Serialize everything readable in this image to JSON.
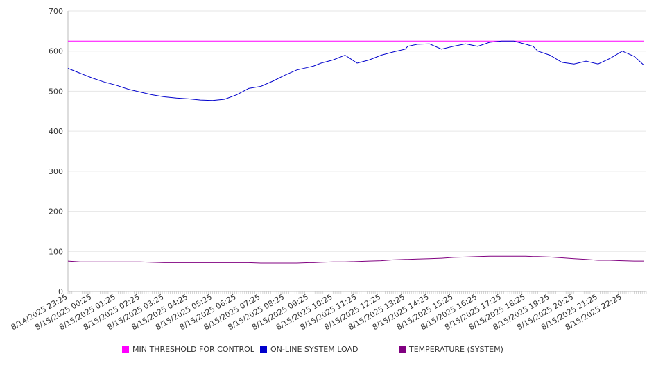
{
  "chart_data": {
    "type": "line",
    "title": "",
    "xlabel": "",
    "ylabel": "",
    "ylim": [
      0,
      700
    ],
    "y_ticks": [
      0,
      100,
      200,
      300,
      400,
      500,
      600,
      700
    ],
    "grid": true,
    "legend_position": "bottom",
    "x_tick_labels": [
      "8/14/2025 23:25",
      "8/15/2025 00:25",
      "8/15/2025 01:25",
      "8/15/2025 02:25",
      "8/15/2025 03:25",
      "8/15/2025 04:25",
      "8/15/2025 05:25",
      "8/15/2025 06:25",
      "8/15/2025 07:25",
      "8/15/2025 08:25",
      "8/15/2025 09:25",
      "8/15/2025 10:25",
      "8/15/2025 11:25",
      "8/15/2025 12:25",
      "8/15/2025 13:25",
      "8/15/2025 14:25",
      "8/15/2025 15:25",
      "8/15/2025 16:25",
      "8/15/2025 17:25",
      "8/15/2025 18:25",
      "8/15/2025 19:25",
      "8/15/2025 20:25",
      "8/15/2025 21:25",
      "8/15/2025 22:25"
    ],
    "x_hours": [
      0,
      0.5,
      1,
      1.5,
      2,
      2.5,
      3,
      3.5,
      4,
      4.5,
      5,
      5.5,
      6,
      6.5,
      7,
      7.5,
      8,
      8.5,
      9,
      9.5,
      10,
      10.2,
      10.5,
      11,
      11.5,
      12,
      12.5,
      13,
      13.5,
      14,
      14.1,
      14.5,
      15,
      15.5,
      16,
      16.5,
      17,
      17.5,
      18,
      18.5,
      19,
      19.3,
      19.5,
      20,
      20.5,
      21,
      21.5,
      22,
      22.5,
      23,
      23.5,
      23.9
    ],
    "series": [
      {
        "name": "MIN THRESHOLD FOR CONTROL",
        "color": "#ff00ff",
        "values": [
          625,
          625,
          625,
          625,
          625,
          625,
          625,
          625,
          625,
          625,
          625,
          625,
          625,
          625,
          625,
          625,
          625,
          625,
          625,
          625,
          625,
          625,
          625,
          625,
          625,
          625,
          625,
          625,
          625,
          625,
          625,
          625,
          625,
          625,
          625,
          625,
          625,
          625,
          625,
          625,
          625,
          625,
          625,
          625,
          625,
          625,
          625,
          625,
          625,
          625,
          625,
          625
        ]
      },
      {
        "name": "ON-LINE SYSTEM LOAD",
        "color": "#0000cc",
        "values": [
          557,
          545,
          533,
          523,
          515,
          505,
          498,
          491,
          486,
          483,
          481,
          478,
          477,
          480,
          491,
          507,
          512,
          525,
          540,
          553,
          560,
          563,
          570,
          578,
          590,
          570,
          578,
          590,
          598,
          605,
          612,
          617,
          618,
          605,
          612,
          618,
          612,
          622,
          625,
          625,
          617,
          612,
          600,
          590,
          572,
          568,
          575,
          568,
          582,
          600,
          587,
          565
        ]
      },
      {
        "name": "TEMPERATURE (SYSTEM)",
        "color": "#800080",
        "values": [
          76,
          74,
          74,
          74,
          74,
          74,
          74,
          73,
          72,
          72,
          72,
          72,
          72,
          72,
          72,
          72,
          71,
          71,
          71,
          71,
          72,
          72,
          73,
          74,
          74,
          75,
          76,
          77,
          79,
          80,
          80,
          81,
          82,
          83,
          85,
          86,
          87,
          88,
          88,
          88,
          88,
          87,
          87,
          86,
          84,
          82,
          80,
          78,
          78,
          77,
          76,
          76
        ]
      }
    ]
  }
}
